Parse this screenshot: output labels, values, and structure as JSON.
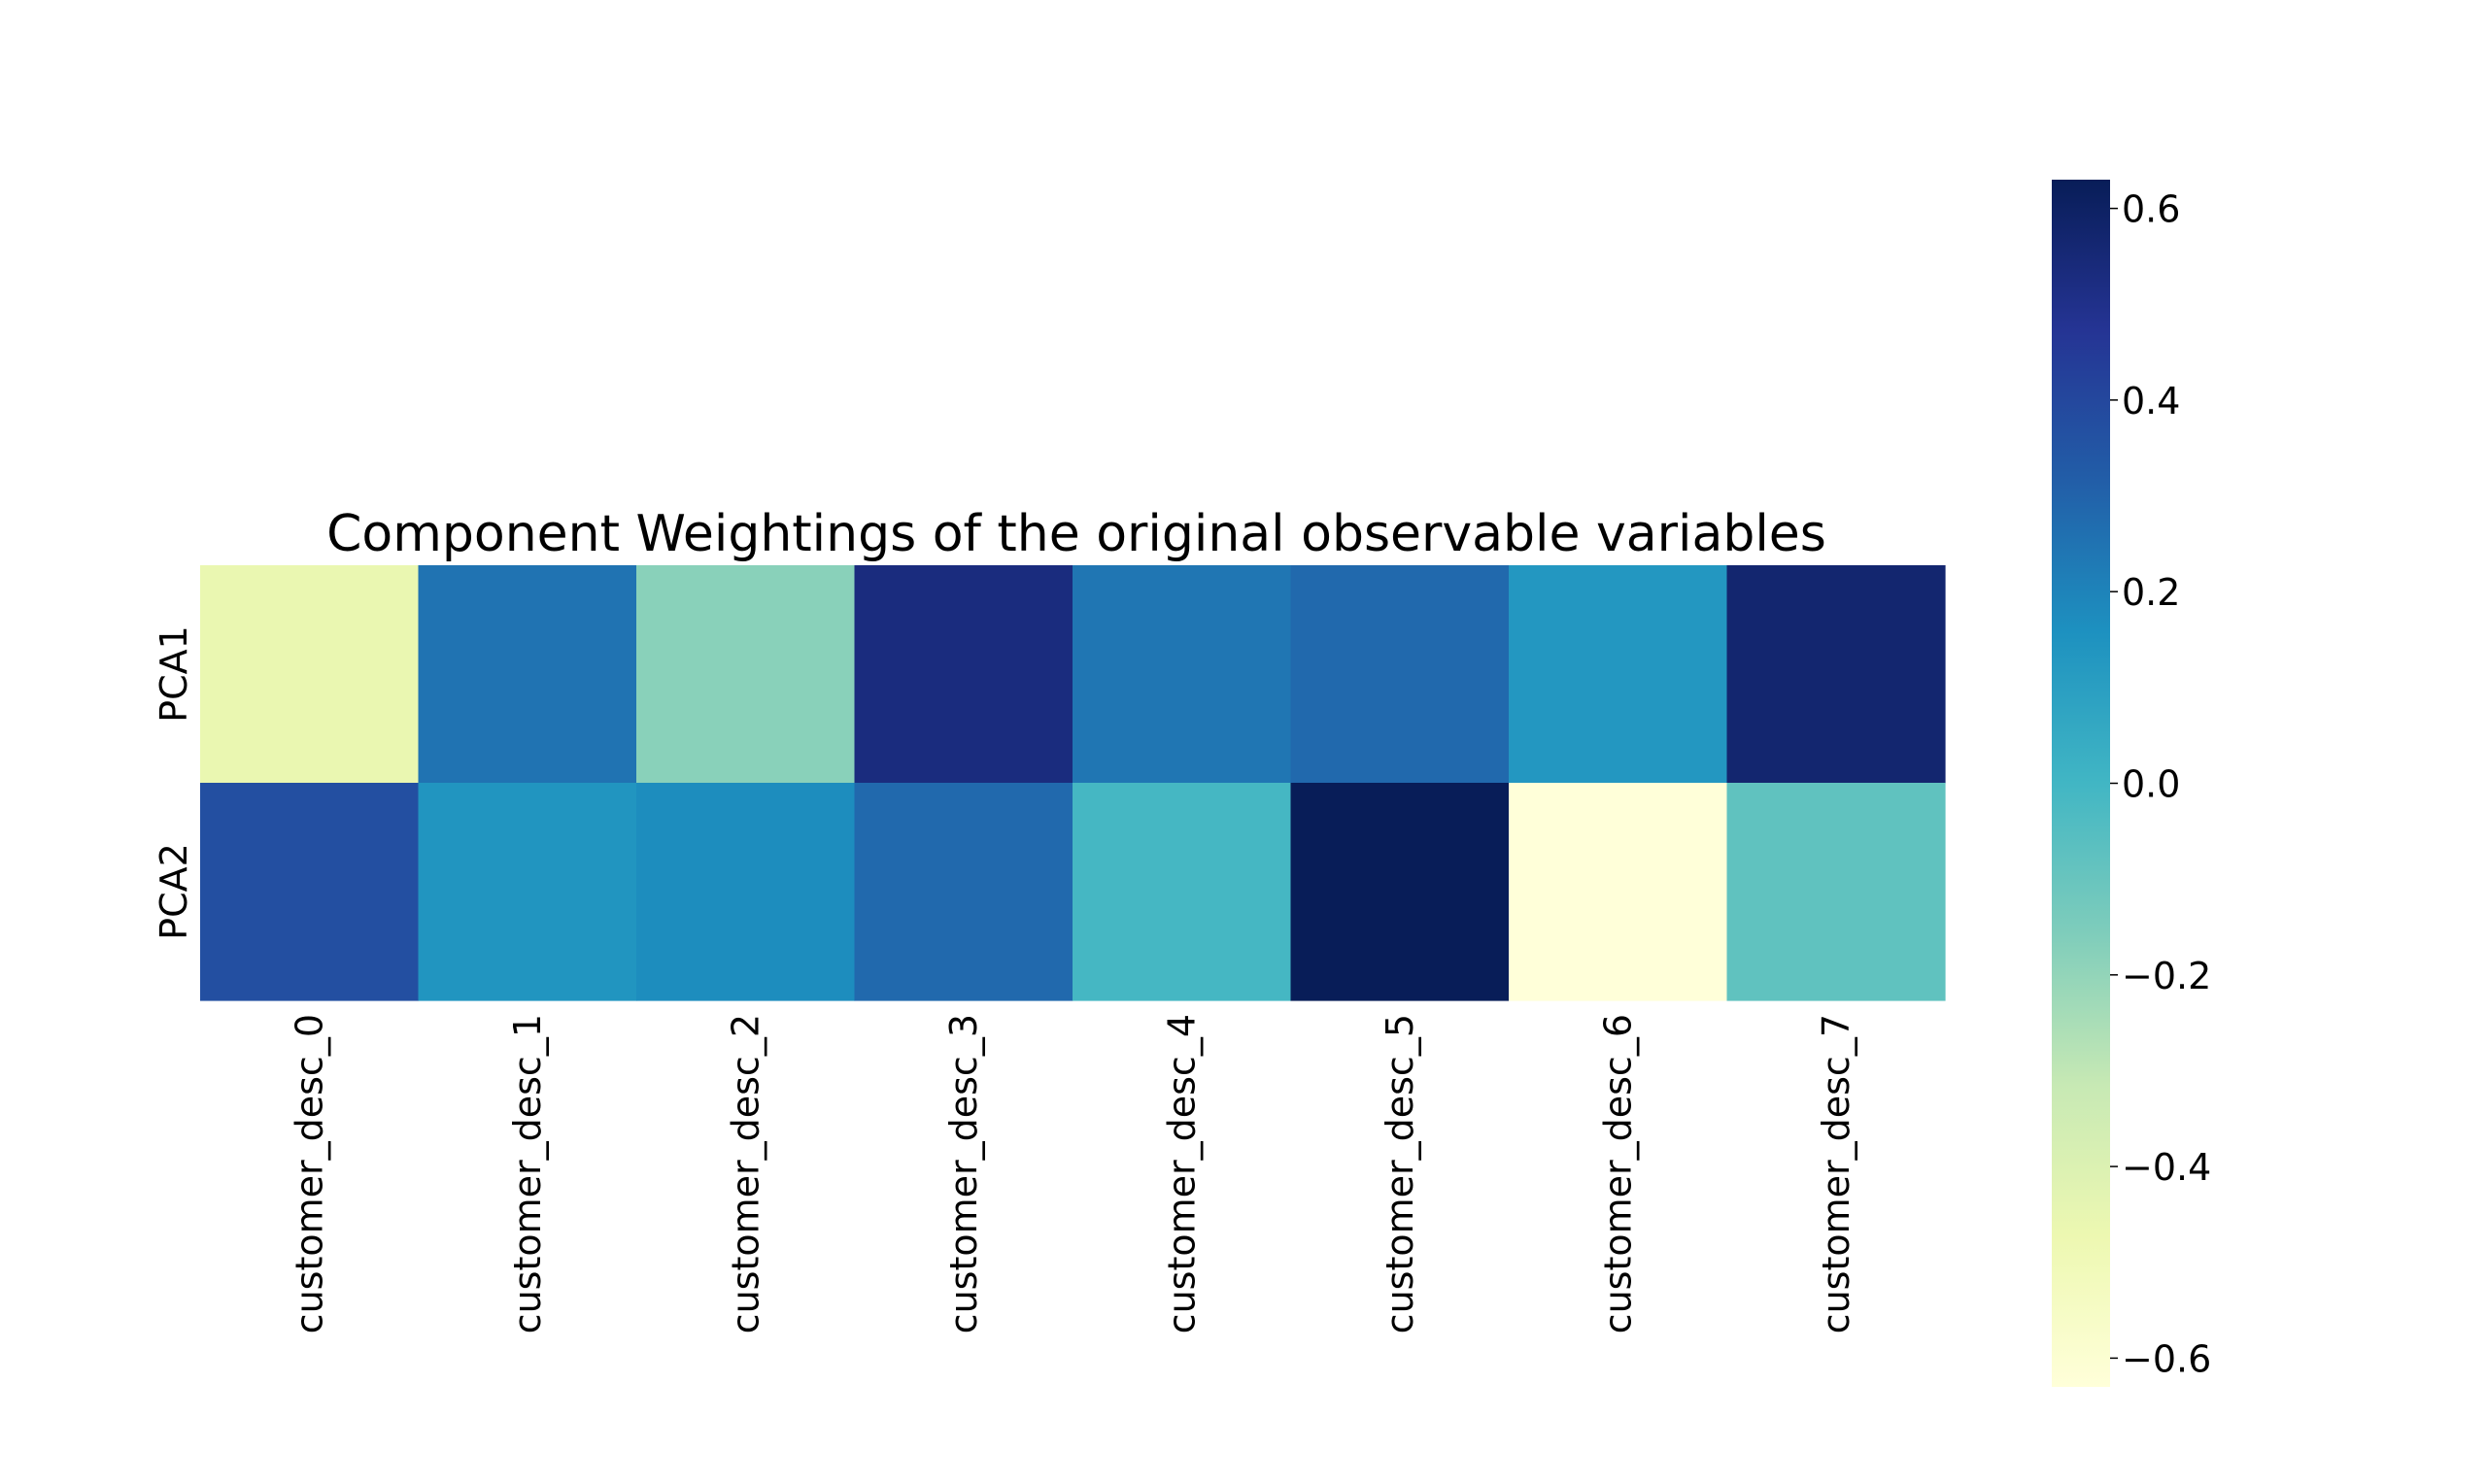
{
  "chart_data": {
    "type": "heatmap",
    "title": "Component Weightings of the original observable variables",
    "xlabel": "",
    "ylabel": "",
    "rows": [
      "PCA1",
      "PCA2"
    ],
    "columns": [
      "customer_desc_0",
      "customer_desc_1",
      "customer_desc_2",
      "customer_desc_3",
      "customer_desc_4",
      "customer_desc_5",
      "customer_desc_6",
      "customer_desc_7"
    ],
    "values": [
      [
        -0.46,
        0.25,
        -0.18,
        0.53,
        0.24,
        0.28,
        0.13,
        0.57
      ],
      [
        0.37,
        0.14,
        0.17,
        0.28,
        -0.01,
        0.63,
        -0.63,
        -0.08
      ]
    ],
    "colorbar": {
      "colormap": "YlGnBu",
      "vmin": -0.63,
      "vmax": 0.63,
      "ticks": [
        0.6,
        0.4,
        0.2,
        0.0,
        -0.2,
        -0.4,
        -0.6
      ],
      "tick_labels": [
        "0.6",
        "0.4",
        "0.2",
        "0.0",
        "−0.2",
        "−0.4",
        "−0.6"
      ]
    },
    "grid": false
  }
}
